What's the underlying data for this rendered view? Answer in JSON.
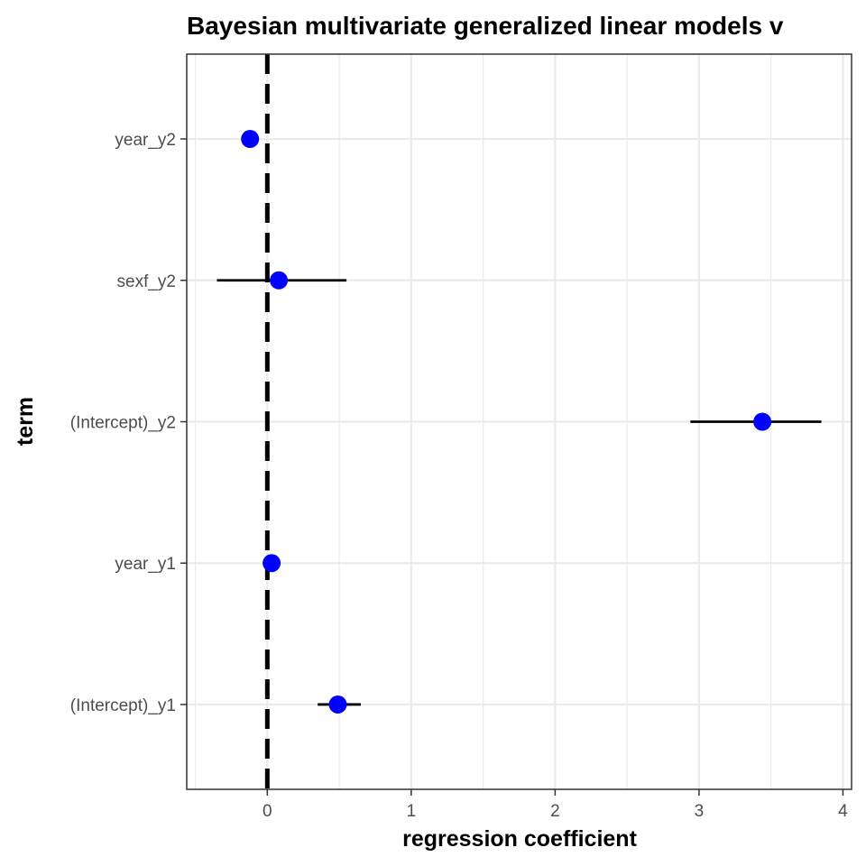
{
  "chart_data": {
    "type": "scatter",
    "title": "Bayesian multivariate generalized linear models v",
    "xlabel": "regression coefficient",
    "ylabel": "term",
    "xlim": [
      -0.56,
      4.06
    ],
    "x_ticks": [
      "0",
      "1",
      "2",
      "3",
      "4"
    ],
    "categories": [
      "(Intercept)_y1",
      "year_y1",
      "(Intercept)_y2",
      "sexf_y2",
      "year_y2"
    ],
    "series": [
      {
        "estimate": [
          0.49,
          0.03,
          3.44,
          0.08,
          -0.12
        ],
        "lower": [
          0.35,
          0.03,
          2.94,
          -0.35,
          -0.12
        ],
        "upper": [
          0.65,
          0.03,
          3.85,
          0.55,
          -0.12
        ]
      }
    ],
    "reference_line": {
      "x": 0,
      "style": "dashed"
    },
    "grid": true,
    "legend": "none",
    "colors": {
      "point": "#0000ff",
      "interval": "#000000",
      "grid": "#ebebeb",
      "panel_border": "#333333"
    }
  }
}
